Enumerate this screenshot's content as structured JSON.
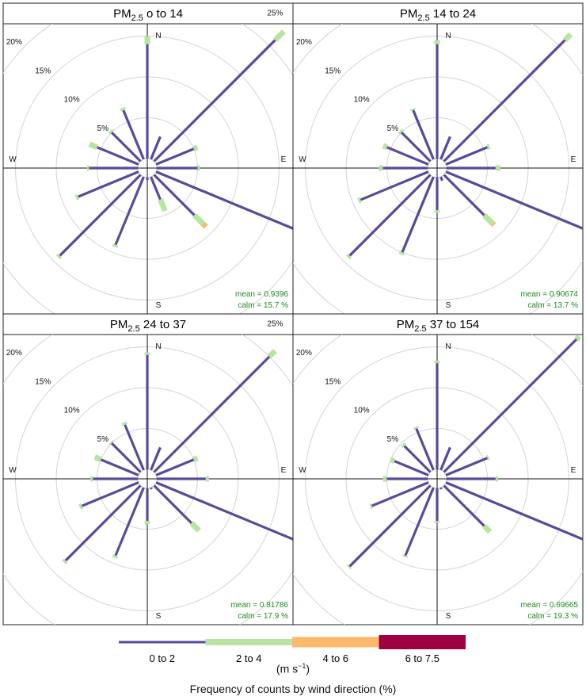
{
  "chart_data": {
    "type": "windrose",
    "directions": [
      "N",
      "NNE",
      "NE",
      "ENE",
      "E",
      "ESE",
      "SE",
      "SSE",
      "S",
      "SSW",
      "SW",
      "WSW",
      "W",
      "WNW",
      "NW",
      "NNW"
    ],
    "cardinal_labels": {
      "N": "N",
      "E": "E",
      "S": "S",
      "W": "W"
    },
    "radial_ticks": [
      "5%",
      "10%",
      "15%",
      "20%",
      "25%"
    ],
    "radial_values": [
      5,
      10,
      15,
      20,
      25
    ],
    "rmax": 27,
    "speed_bins": [
      {
        "label": "0 to 2",
        "color": "#574b9a"
      },
      {
        "label": "2 to 4",
        "color": "#b7e4a0"
      },
      {
        "label": "4 to 6",
        "color": "#fdb96b"
      },
      {
        "label": "6 to 7.5",
        "color": "#9e0142"
      }
    ],
    "unit_text": "(m s",
    "unit_sup": "−1",
    "unit_close": ")",
    "caption": "Frequency of counts by wind direction (%)",
    "panels": [
      {
        "title_main": "PM",
        "title_sub": "2.5",
        "title_rest": " o to 14",
        "mean_text": "mean = 0.9396",
        "calm_text": "calm = 15.7 %",
        "freq": [
          [
            14,
            1,
            0,
            0
          ],
          [
            3,
            0,
            0,
            0
          ],
          [
            21,
            1.5,
            0,
            0
          ],
          [
            5,
            0.5,
            0,
            0
          ],
          [
            5,
            0.3,
            0,
            0
          ],
          [
            23,
            3.5,
            0.6,
            0.2
          ],
          [
            7,
            1.5,
            0.5,
            0
          ],
          [
            3,
            1.5,
            0,
            0
          ],
          [
            0.3,
            0,
            0,
            0
          ],
          [
            9,
            0.3,
            0,
            0
          ],
          [
            14,
            0.3,
            0,
            0
          ],
          [
            8,
            0.3,
            0,
            0
          ],
          [
            6,
            0.2,
            0,
            0
          ],
          [
            5.5,
            1,
            0,
            0
          ],
          [
            5,
            0.3,
            0,
            0
          ],
          [
            6.5,
            0.3,
            0,
            0
          ]
        ]
      },
      {
        "title_main": "PM",
        "title_sub": "2.5",
        "title_rest": " 14 to 24",
        "mean_text": "mean = 0.90674",
        "calm_text": "calm = 13.7 %",
        "freq": [
          [
            14,
            0.5,
            0,
            0
          ],
          [
            3,
            0,
            0,
            0
          ],
          [
            21,
            1,
            0,
            0
          ],
          [
            5.5,
            0.3,
            0,
            0
          ],
          [
            6,
            0.6,
            0,
            0
          ],
          [
            22,
            2.5,
            0.3,
            0
          ],
          [
            7,
            1.5,
            0.2,
            0
          ],
          [
            0.5,
            0,
            0,
            0
          ],
          [
            4,
            0.3,
            0,
            0
          ],
          [
            10,
            0.3,
            0,
            0
          ],
          [
            14,
            0.3,
            0,
            0
          ],
          [
            9,
            0.3,
            0,
            0
          ],
          [
            5.5,
            0.5,
            0,
            0
          ],
          [
            5.5,
            0.5,
            0,
            0
          ],
          [
            5,
            0.3,
            0,
            0
          ],
          [
            6.5,
            0.2,
            0,
            0
          ]
        ]
      },
      {
        "title_main": "PM",
        "title_sub": "2.5",
        "title_rest": " 24 to 37",
        "mean_text": "mean = 0.81786",
        "calm_text": "calm = 17.9 %",
        "freq": [
          [
            14,
            0.3,
            0,
            0
          ],
          [
            3,
            0,
            0,
            0
          ],
          [
            20,
            1,
            0,
            0
          ],
          [
            5,
            0.5,
            0,
            0
          ],
          [
            6,
            0.4,
            0,
            0
          ],
          [
            21,
            3,
            0.3,
            0
          ],
          [
            6.5,
            1.3,
            0,
            0
          ],
          [
            0.2,
            0,
            0,
            0
          ],
          [
            4,
            0.4,
            0,
            0
          ],
          [
            9,
            0.3,
            0,
            0
          ],
          [
            13,
            0.3,
            0,
            0
          ],
          [
            7.5,
            0.3,
            0,
            0
          ],
          [
            5.5,
            0.3,
            0,
            0
          ],
          [
            5,
            0.8,
            0,
            0
          ],
          [
            5,
            0.2,
            0,
            0
          ],
          [
            6,
            0.3,
            0,
            0
          ]
        ]
      },
      {
        "title_main": "PM",
        "title_sub": "2.5",
        "title_rest": " 37 to 154",
        "mean_text": "mean = 0.69665",
        "calm_text": "calm = 19.3 %",
        "freq": [
          [
            13,
            0.3,
            0,
            0
          ],
          [
            3,
            0,
            0,
            0
          ],
          [
            23,
            0.5,
            0,
            0
          ],
          [
            5.5,
            0.2,
            0,
            0
          ],
          [
            6,
            0.3,
            0,
            0
          ],
          [
            20,
            2,
            0,
            0
          ],
          [
            7,
            1,
            0,
            0
          ],
          [
            0.2,
            0,
            0,
            0
          ],
          [
            4,
            0.2,
            0,
            0
          ],
          [
            9,
            0.2,
            0,
            0
          ],
          [
            14,
            0.2,
            0,
            0
          ],
          [
            7.5,
            0.2,
            0,
            0
          ],
          [
            5,
            0.5,
            0,
            0
          ],
          [
            4.5,
            0.5,
            0,
            0
          ],
          [
            4.5,
            0.3,
            0,
            0
          ],
          [
            5.5,
            0.2,
            0,
            0
          ]
        ]
      }
    ]
  }
}
